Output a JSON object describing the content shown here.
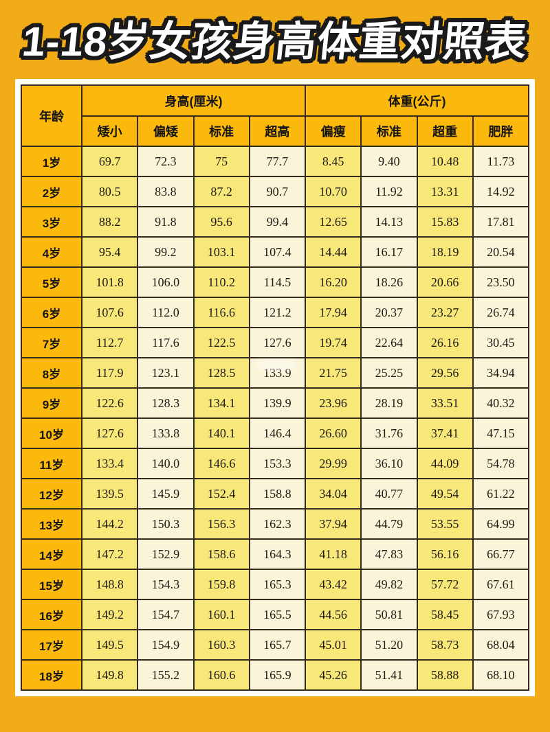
{
  "title": "1-18岁女孩身高体重对照表",
  "table": {
    "age_header": "年龄",
    "height_group": "身高(厘米)",
    "weight_group": "体重(公斤)",
    "height_cols": [
      "矮小",
      "偏矮",
      "标准",
      "超高"
    ],
    "weight_cols": [
      "偏瘦",
      "标准",
      "超重",
      "肥胖"
    ],
    "rows": [
      {
        "age": "1岁",
        "values": [
          "69.7",
          "72.3",
          "75",
          "77.7",
          "8.45",
          "9.40",
          "10.48",
          "11.73"
        ]
      },
      {
        "age": "2岁",
        "values": [
          "80.5",
          "83.8",
          "87.2",
          "90.7",
          "10.70",
          "11.92",
          "13.31",
          "14.92"
        ]
      },
      {
        "age": "3岁",
        "values": [
          "88.2",
          "91.8",
          "95.6",
          "99.4",
          "12.65",
          "14.13",
          "15.83",
          "17.81"
        ]
      },
      {
        "age": "4岁",
        "values": [
          "95.4",
          "99.2",
          "103.1",
          "107.4",
          "14.44",
          "16.17",
          "18.19",
          "20.54"
        ]
      },
      {
        "age": "5岁",
        "values": [
          "101.8",
          "106.0",
          "110.2",
          "114.5",
          "16.20",
          "18.26",
          "20.66",
          "23.50"
        ]
      },
      {
        "age": "6岁",
        "values": [
          "107.6",
          "112.0",
          "116.6",
          "121.2",
          "17.94",
          "20.37",
          "23.27",
          "26.74"
        ]
      },
      {
        "age": "7岁",
        "values": [
          "112.7",
          "117.6",
          "122.5",
          "127.6",
          "19.74",
          "22.64",
          "26.16",
          "30.45"
        ]
      },
      {
        "age": "8岁",
        "values": [
          "117.9",
          "123.1",
          "128.5",
          "133.9",
          "21.75",
          "25.25",
          "29.56",
          "34.94"
        ]
      },
      {
        "age": "9岁",
        "values": [
          "122.6",
          "128.3",
          "134.1",
          "139.9",
          "23.96",
          "28.19",
          "33.51",
          "40.32"
        ]
      },
      {
        "age": "10岁",
        "values": [
          "127.6",
          "133.8",
          "140.1",
          "146.4",
          "26.60",
          "31.76",
          "37.41",
          "47.15"
        ]
      },
      {
        "age": "11岁",
        "values": [
          "133.4",
          "140.0",
          "146.6",
          "153.3",
          "29.99",
          "36.10",
          "44.09",
          "54.78"
        ]
      },
      {
        "age": "12岁",
        "values": [
          "139.5",
          "145.9",
          "152.4",
          "158.8",
          "34.04",
          "40.77",
          "49.54",
          "61.22"
        ]
      },
      {
        "age": "13岁",
        "values": [
          "144.2",
          "150.3",
          "156.3",
          "162.3",
          "37.94",
          "44.79",
          "53.55",
          "64.99"
        ]
      },
      {
        "age": "14岁",
        "values": [
          "147.2",
          "152.9",
          "158.6",
          "164.3",
          "41.18",
          "47.83",
          "56.16",
          "66.77"
        ]
      },
      {
        "age": "15岁",
        "values": [
          "148.8",
          "154.3",
          "159.8",
          "165.3",
          "43.42",
          "49.82",
          "57.72",
          "67.61"
        ]
      },
      {
        "age": "16岁",
        "values": [
          "149.2",
          "154.7",
          "160.1",
          "165.5",
          "44.56",
          "50.81",
          "58.45",
          "67.93"
        ]
      },
      {
        "age": "17岁",
        "values": [
          "149.5",
          "154.9",
          "160.3",
          "165.7",
          "45.01",
          "51.20",
          "58.73",
          "68.04"
        ]
      },
      {
        "age": "18岁",
        "values": [
          "149.8",
          "155.2",
          "160.6",
          "165.9",
          "45.26",
          "51.41",
          "58.88",
          "68.10"
        ]
      }
    ]
  },
  "colors": {
    "background": "#F1AC17",
    "header_cell": "#FBB80D",
    "cell_yellow": "#F8E87A",
    "cell_cream": "#FAF4D8",
    "border": "#33291C",
    "title_fill": "#FFFFFF",
    "title_outline": "#1A1A1A"
  }
}
